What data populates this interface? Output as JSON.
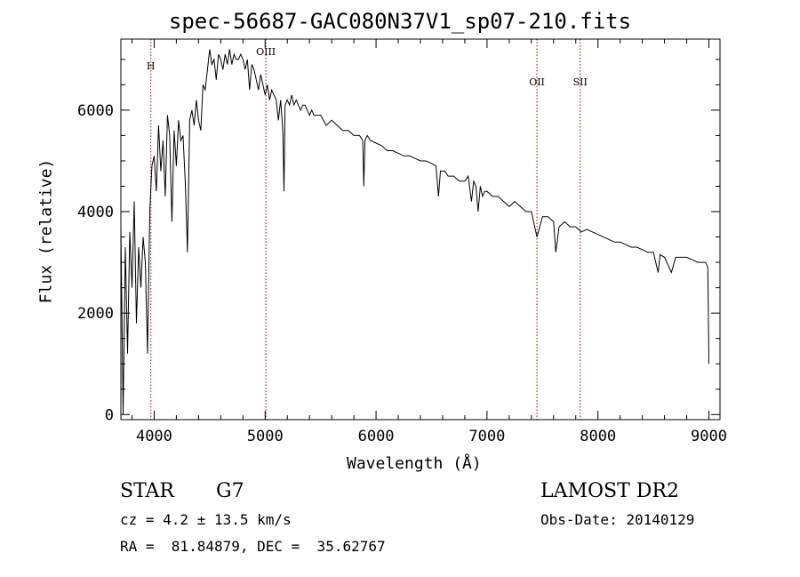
{
  "chart_data": {
    "type": "line",
    "title": "spec-56687-GAC080N37V1_sp07-210.fits",
    "xlabel": "Wavelength (Å)",
    "ylabel": "Flux (relative)",
    "xlim": [
      3700,
      9100
    ],
    "ylim": [
      -100,
      7400
    ],
    "xticks": [
      4000,
      5000,
      6000,
      7000,
      8000,
      9000
    ],
    "yticks": [
      0,
      2000,
      4000,
      6000
    ],
    "grid": false,
    "series": [
      {
        "x": [
          3700,
          3720,
          3740,
          3760,
          3780,
          3800,
          3820,
          3840,
          3860,
          3880,
          3900,
          3920,
          3940,
          3960,
          3980,
          4000,
          4020,
          4040,
          4060,
          4080,
          4100,
          4120,
          4140,
          4160,
          4180,
          4200,
          4220,
          4240,
          4260,
          4280,
          4300,
          4320,
          4340,
          4360,
          4380,
          4400,
          4420,
          4440,
          4460,
          4480,
          4500,
          4520,
          4540,
          4560,
          4580,
          4600,
          4620,
          4640,
          4660,
          4680,
          4700,
          4720,
          4740,
          4760,
          4780,
          4800,
          4820,
          4840,
          4860,
          4880,
          4900,
          4920,
          4940,
          4960,
          4980,
          5000,
          5020,
          5040,
          5060,
          5080,
          5100,
          5120,
          5140,
          5160,
          5170,
          5180,
          5200,
          5220,
          5240,
          5260,
          5280,
          5300,
          5320,
          5340,
          5360,
          5380,
          5400,
          5420,
          5440,
          5460,
          5480,
          5500,
          5550,
          5600,
          5650,
          5700,
          5750,
          5800,
          5850,
          5880,
          5890,
          5900,
          5920,
          5950,
          6000,
          6050,
          6100,
          6150,
          6200,
          6250,
          6300,
          6350,
          6400,
          6450,
          6500,
          6540,
          6563,
          6580,
          6620,
          6650,
          6700,
          6750,
          6800,
          6830,
          6860,
          6880,
          6900,
          6920,
          6940,
          6960,
          6980,
          7000,
          7050,
          7100,
          7150,
          7200,
          7250,
          7300,
          7350,
          7400,
          7450,
          7500,
          7550,
          7600,
          7620,
          7650,
          7700,
          7750,
          7800,
          7850,
          7900,
          7950,
          8000,
          8050,
          8100,
          8150,
          8200,
          8250,
          8300,
          8350,
          8400,
          8450,
          8500,
          8542,
          8560,
          8600,
          8662,
          8700,
          8750,
          8800,
          8850,
          8900,
          8950,
          8970,
          8990,
          9000
        ],
        "y": [
          3700,
          0,
          3300,
          1200,
          3600,
          2500,
          4200,
          1800,
          3300,
          2500,
          3500,
          3000,
          1200,
          4000,
          4900,
          5100,
          4400,
          5700,
          4800,
          5400,
          4300,
          5900,
          5500,
          3800,
          5600,
          4900,
          5800,
          5400,
          5500,
          4600,
          3200,
          5800,
          6000,
          5700,
          6200,
          5800,
          5600,
          6500,
          6400,
          6800,
          7200,
          6900,
          7000,
          6600,
          7100,
          7000,
          6800,
          7100,
          6900,
          7200,
          6900,
          7100,
          7000,
          7000,
          7100,
          7000,
          6800,
          7000,
          6400,
          6900,
          6800,
          6600,
          6400,
          6700,
          6500,
          6300,
          6500,
          6200,
          6400,
          6300,
          6200,
          5800,
          6200,
          5600,
          4400,
          6100,
          6200,
          6100,
          6300,
          6100,
          6200,
          6100,
          6000,
          6100,
          6100,
          6000,
          5900,
          6000,
          5900,
          5900,
          5900,
          5900,
          5700,
          5800,
          5700,
          5600,
          5600,
          5500,
          5500,
          5400,
          4500,
          5400,
          5500,
          5400,
          5350,
          5300,
          5200,
          5200,
          5150,
          5100,
          5100,
          5050,
          5000,
          5000,
          4950,
          4900,
          4300,
          4800,
          4800,
          4700,
          4700,
          4600,
          4600,
          4700,
          4200,
          4600,
          4500,
          4000,
          4500,
          4300,
          4400,
          4400,
          4300,
          4300,
          4200,
          4100,
          4200,
          4100,
          4000,
          4000,
          3500,
          3900,
          3900,
          3800,
          3200,
          3700,
          3800,
          3700,
          3700,
          3600,
          3650,
          3600,
          3550,
          3500,
          3450,
          3400,
          3400,
          3350,
          3300,
          3300,
          3250,
          3200,
          3200,
          2800,
          3150,
          3100,
          2800,
          3100,
          3100,
          3100,
          3050,
          3000,
          3000,
          3000,
          2900,
          1000
        ]
      }
    ],
    "annotations": [
      {
        "label": "H",
        "x": 3970
      },
      {
        "label": "OIII",
        "x": 5007
      },
      {
        "label": "OII",
        "x": 7450
      },
      {
        "label": "SII",
        "x": 7840
      }
    ]
  },
  "info": {
    "class_label": "STAR",
    "subclass": "G7",
    "survey": "LAMOST DR2",
    "cz": "cz = 4.2 ± 13.5 km/s",
    "obs_date": "Obs-Date: 20140129",
    "coords": "RA =  81.84879, DEC =  35.62767"
  },
  "colors": {
    "line": "#000000",
    "annotation_line": "#b00000"
  }
}
